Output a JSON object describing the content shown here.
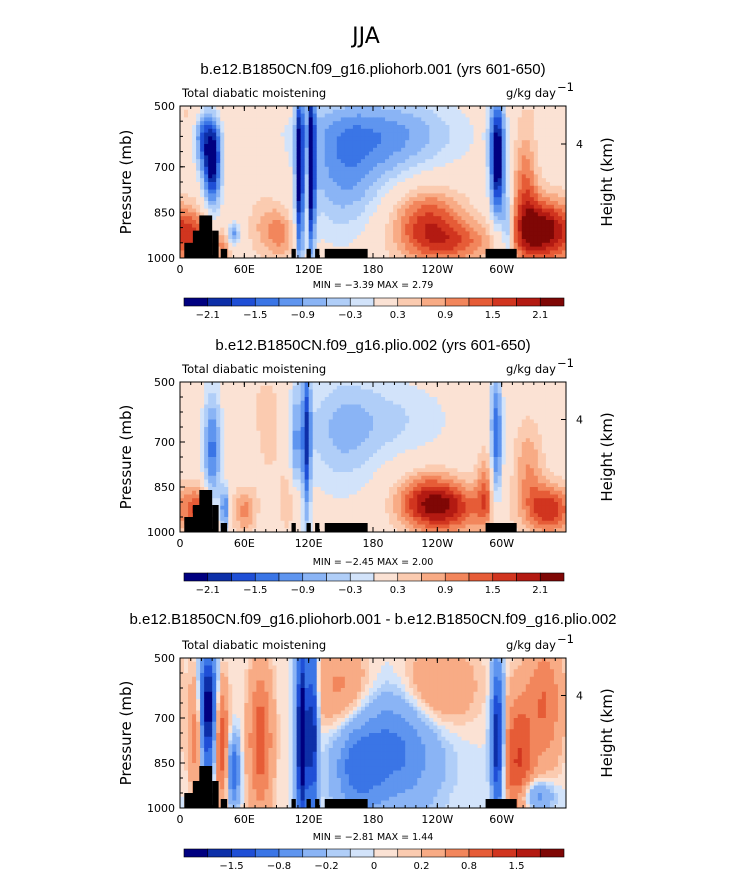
{
  "suptitle": "JJA",
  "colors": {
    "scale": [
      "#000080",
      "#0d2fa8",
      "#1f4fd6",
      "#3a75e6",
      "#5f95ef",
      "#8ab4f5",
      "#b0cef8",
      "#d2e3fa",
      "#fbe2d4",
      "#fbcbb0",
      "#f8ab85",
      "#f2865c",
      "#e65c37",
      "#d1351f",
      "#b31a12",
      "#7f0705"
    ],
    "land": "#000000"
  },
  "chart_data": [
    {
      "type": "heatmap",
      "id": "p1",
      "title": "b.e12.B1850CN.f09_g16.pliohorb.001 (yrs 601-650)",
      "left_label": "Total diabatic moistening",
      "units_label": "g/kg day",
      "units_exp": "−1",
      "ylabel": "Pressure (mb)",
      "ylabel_right": "Height (km)",
      "y_ticks": [
        "500",
        "700",
        "850",
        "1000"
      ],
      "y_right_ticks": [
        "4"
      ],
      "x_ticks": [
        "0",
        "60E",
        "120E",
        "180",
        "120W",
        "60W"
      ],
      "xlim": [
        0,
        360
      ],
      "ylim": [
        1000,
        500
      ],
      "min_text": "MIN =   −3.39   MAX =    2.79",
      "levels": [
        -2.4,
        -2.1,
        -1.8,
        -1.5,
        -1.2,
        -0.9,
        -0.6,
        -0.3,
        0.3,
        0.6,
        0.9,
        1.2,
        1.5,
        1.8,
        2.1,
        2.4
      ],
      "colorbar_labels": [
        "−2.1",
        "−1.5",
        "−0.9",
        "−0.3",
        "0.3",
        "0.9",
        "1.5",
        "2.1"
      ]
    },
    {
      "type": "heatmap",
      "id": "p2",
      "title": "b.e12.B1850CN.f09_g16.plio.002 (yrs 601-650)",
      "left_label": "Total diabatic moistening",
      "units_label": "g/kg day",
      "units_exp": "−1",
      "ylabel": "Pressure (mb)",
      "ylabel_right": "Height (km)",
      "y_ticks": [
        "500",
        "700",
        "850",
        "1000"
      ],
      "y_right_ticks": [
        "4"
      ],
      "x_ticks": [
        "0",
        "60E",
        "120E",
        "180",
        "120W",
        "60W"
      ],
      "xlim": [
        0,
        360
      ],
      "ylim": [
        1000,
        500
      ],
      "min_text": "MIN =   −2.45   MAX =    2.00",
      "levels": [
        -2.4,
        -2.1,
        -1.8,
        -1.5,
        -1.2,
        -0.9,
        -0.6,
        -0.3,
        0.3,
        0.6,
        0.9,
        1.2,
        1.5,
        1.8,
        2.1,
        2.4
      ],
      "colorbar_labels": [
        "−2.1",
        "−1.5",
        "−0.9",
        "−0.3",
        "0.3",
        "0.9",
        "1.5",
        "2.1"
      ]
    },
    {
      "type": "heatmap",
      "id": "p3",
      "title": "b.e12.B1850CN.f09_g16.pliohorb.001 - b.e12.B1850CN.f09_g16.plio.002",
      "left_label": "Total diabatic moistening",
      "units_label": "g/kg day",
      "units_exp": "−1",
      "ylabel": "Pressure (mb)",
      "ylabel_right": "Height (km)",
      "y_ticks": [
        "500",
        "700",
        "850",
        "1000"
      ],
      "y_right_ticks": [
        "4"
      ],
      "x_ticks": [
        "0",
        "60E",
        "120E",
        "180",
        "120W",
        "60W"
      ],
      "xlim": [
        0,
        360
      ],
      "ylim": [
        1000,
        500
      ],
      "min_text": "MIN =   −2.81   MAX =    1.44",
      "levels": [
        -1.8,
        -1.5,
        -1.2,
        -0.8,
        -0.5,
        -0.2,
        -0.1,
        0,
        0.1,
        0.2,
        0.5,
        0.8,
        1.2,
        1.5,
        1.8,
        2.1
      ],
      "colorbar_labels": [
        "−1.5",
        "−0.8",
        "−0.2",
        "0",
        "0.2",
        "0.8",
        "1.5"
      ]
    }
  ]
}
